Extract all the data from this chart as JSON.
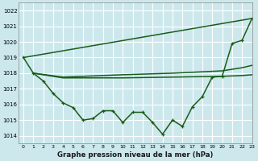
{
  "bg_color": "#cce8ec",
  "grid_color": "#ffffff",
  "line_color": "#1a5c1a",
  "title": "Graphe pression niveau de la mer (hPa)",
  "xlim": [
    -0.5,
    23
  ],
  "ylim": [
    1013.5,
    1022.5
  ],
  "yticks": [
    1014,
    1015,
    1016,
    1017,
    1018,
    1019,
    1020,
    1021,
    1022
  ],
  "xticks": [
    0,
    1,
    2,
    3,
    4,
    5,
    6,
    7,
    8,
    9,
    10,
    11,
    12,
    13,
    14,
    15,
    16,
    17,
    18,
    19,
    20,
    21,
    22,
    23
  ],
  "series": [
    {
      "x": [
        0,
        23
      ],
      "y": [
        1019.0,
        1021.5
      ],
      "marker": null,
      "linewidth": 1.1
    },
    {
      "x": [
        1,
        4,
        10,
        15,
        20,
        22,
        23
      ],
      "y": [
        1018.0,
        1017.75,
        1017.9,
        1018.0,
        1018.15,
        1018.35,
        1018.5
      ],
      "marker": null,
      "linewidth": 1.1
    },
    {
      "x": [
        1,
        4,
        10,
        15,
        20,
        22,
        23
      ],
      "y": [
        1018.0,
        1017.7,
        1017.7,
        1017.75,
        1017.8,
        1017.85,
        1017.9
      ],
      "marker": null,
      "linewidth": 1.1
    },
    {
      "x": [
        0,
        1,
        2,
        3,
        4,
        5,
        6,
        7,
        8,
        9,
        10,
        11,
        12,
        13,
        14,
        15,
        16,
        17,
        18,
        19,
        20,
        21,
        22,
        23
      ],
      "y": [
        1019.0,
        1018.0,
        1017.5,
        1016.7,
        1016.1,
        1015.8,
        1015.0,
        1015.1,
        1015.6,
        1015.6,
        1014.85,
        1015.5,
        1015.5,
        1014.85,
        1014.1,
        1015.0,
        1014.6,
        1015.85,
        1016.5,
        1017.75,
        1017.8,
        1019.9,
        1020.1,
        1021.5
      ],
      "marker": "+",
      "linewidth": 1.1
    }
  ]
}
